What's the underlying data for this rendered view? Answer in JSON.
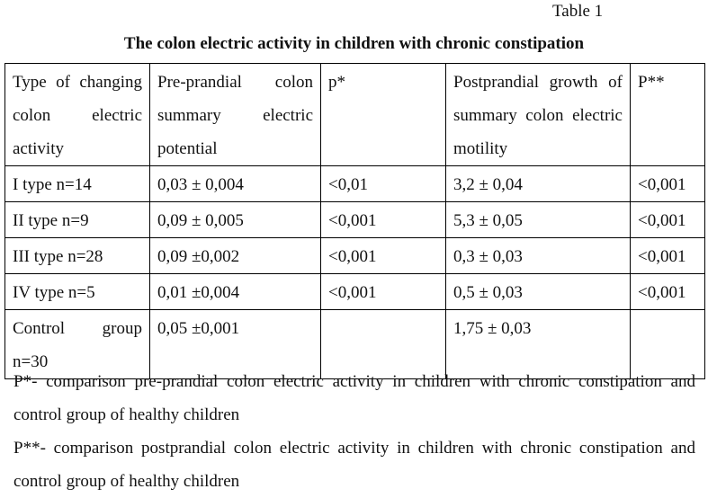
{
  "header": {
    "table_label": "Table 1",
    "title": "The colon electric activity in children with chronic constipation"
  },
  "table": {
    "columns": [
      "Type of changing colon electric activity",
      "Pre-prandial colon summary electric potential",
      "p*",
      "Postprandial growth of summary colon electric motility",
      "P**"
    ],
    "rows": [
      [
        "I type n=14",
        "0,03 ± 0,004",
        "<0,01",
        "3,2 ± 0,04",
        "<0,001"
      ],
      [
        "II type n=9",
        "0,09 ± 0,005",
        "<0,001",
        "5,3 ± 0,05",
        "<0,001"
      ],
      [
        "III type n=28",
        "0,09 ±0,002",
        "<0,001",
        "0,3 ± 0,03",
        "<0,001"
      ],
      [
        "IV type n=5",
        "0,01 ±0,004",
        "<0,001",
        "0,5 ± 0,03",
        "<0,001"
      ],
      [
        "Control group n=30",
        "0,05 ±0,001",
        null,
        "1,75 ± 0,03",
        null
      ]
    ]
  },
  "footnotes": [
    "P*- comparison pre-prandial colon electric activity in children with chronic constipation and control group of healthy children",
    "P**- comparison postprandial colon electric activity in children with chronic constipation and control group of healthy children"
  ]
}
